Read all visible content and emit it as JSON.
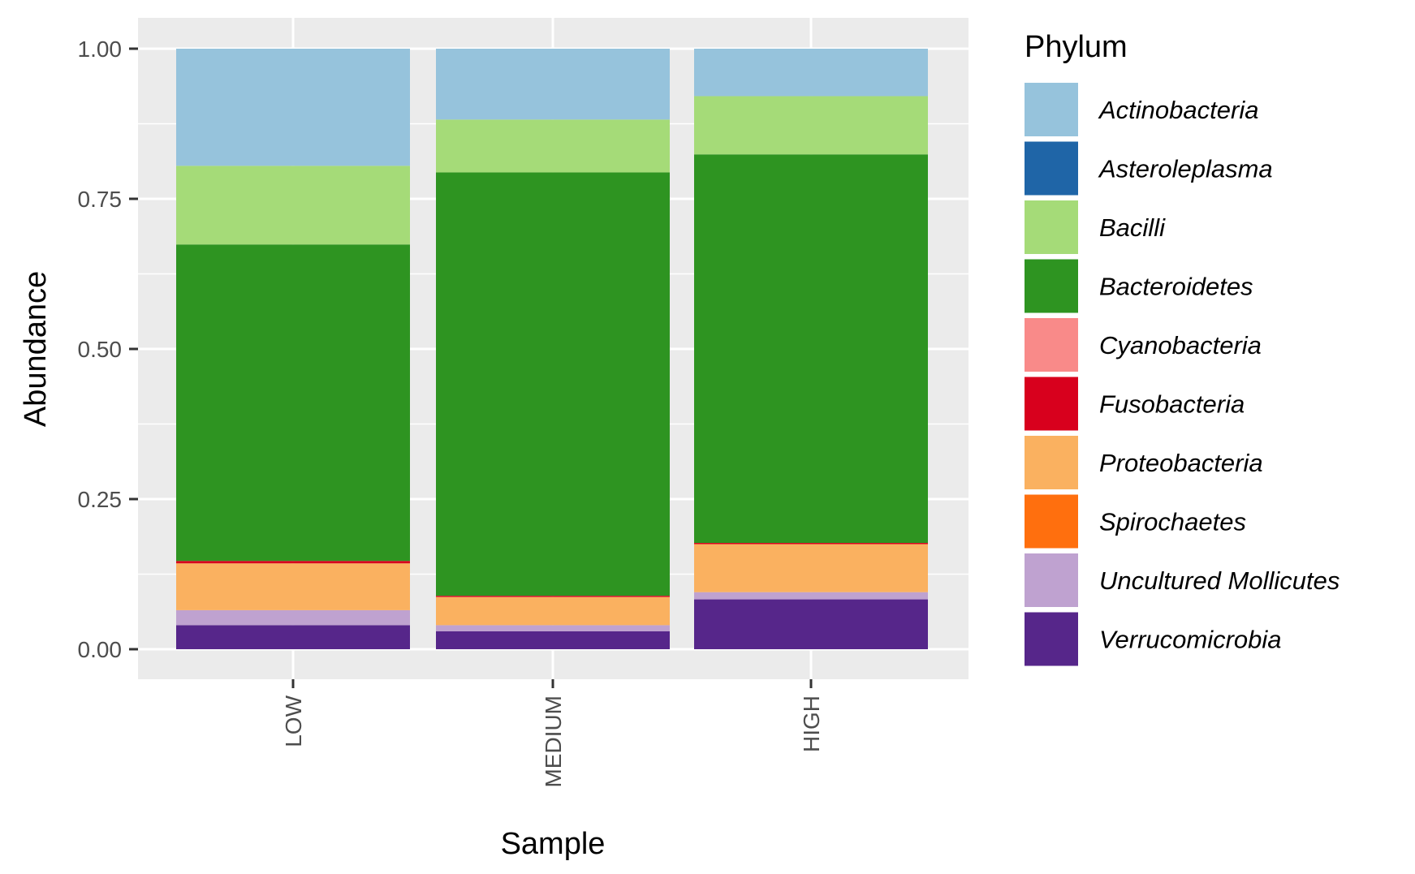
{
  "chart_data": {
    "type": "bar",
    "stacked": true,
    "xlabel": "Sample",
    "ylabel": "Abundance",
    "ylim": [
      0,
      1
    ],
    "yticks": [
      "0.00",
      "0.25",
      "0.50",
      "0.75",
      "1.00"
    ],
    "categories": [
      "LOW",
      "MEDIUM",
      "HIGH"
    ],
    "legend": {
      "title": "Phylum",
      "placement": "right"
    },
    "grid": true,
    "series": [
      {
        "name": "Verrucomicrobia",
        "color": "#56268A",
        "values": [
          0.04,
          0.03,
          0.083
        ]
      },
      {
        "name": "Uncultured Mollicutes",
        "color": "#BFA2D0",
        "values": [
          0.025,
          0.01,
          0.012
        ]
      },
      {
        "name": "Spirochaetes",
        "color": "#FF6F0E",
        "values": [
          0.0,
          0.0,
          0.0
        ]
      },
      {
        "name": "Proteobacteria",
        "color": "#FAB160",
        "values": [
          0.078,
          0.047,
          0.08
        ]
      },
      {
        "name": "Fusobacteria",
        "color": "#D8001D",
        "values": [
          0.004,
          0.002,
          0.002
        ]
      },
      {
        "name": "Cyanobacteria",
        "color": "#F98A89",
        "values": [
          0.0,
          0.0,
          0.0
        ]
      },
      {
        "name": "Bacteroidetes",
        "color": "#2E9421",
        "values": [
          0.527,
          0.705,
          0.647
        ]
      },
      {
        "name": "Bacilli",
        "color": "#A5DB78",
        "values": [
          0.131,
          0.088,
          0.097
        ]
      },
      {
        "name": "Asteroleplasma",
        "color": "#1F65A7",
        "values": [
          0.0,
          0.0,
          0.0
        ]
      },
      {
        "name": "Actinobacteria",
        "color": "#96C3DC",
        "values": [
          0.195,
          0.118,
          0.079
        ]
      }
    ]
  },
  "legend_order": [
    "Actinobacteria",
    "Asteroleplasma",
    "Bacilli",
    "Bacteroidetes",
    "Cyanobacteria",
    "Fusobacteria",
    "Proteobacteria",
    "Spirochaetes",
    "Uncultured Mollicutes",
    "Verrucomicrobia"
  ]
}
